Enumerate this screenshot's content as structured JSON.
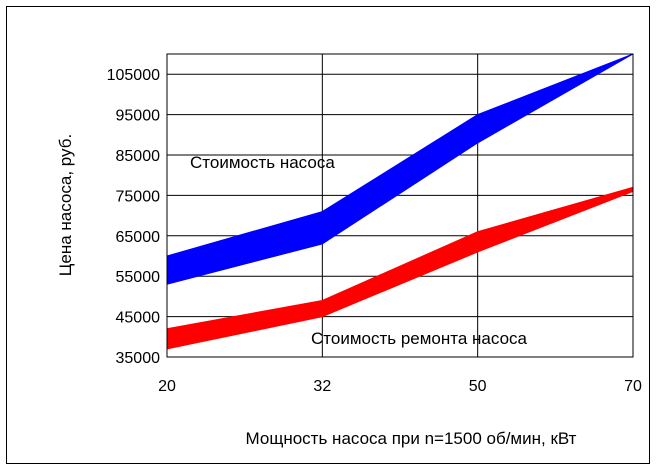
{
  "chart_data": {
    "type": "area",
    "title": "",
    "xlabel": "Мощность насоса при n=1500 об/мин, кВт",
    "ylabel": "Цена насоса, руб.",
    "x_categories": [
      "20",
      "32",
      "50",
      "70"
    ],
    "yticks": [
      35000,
      45000,
      55000,
      65000,
      75000,
      85000,
      95000,
      105000
    ],
    "ylim": [
      35000,
      110000
    ],
    "grid": true,
    "series": [
      {
        "name": "Стоимость насоса",
        "color": "#0000ff",
        "lower": [
          53000,
          63000,
          88000,
          110000
        ],
        "upper": [
          60000,
          71000,
          95000,
          110000
        ]
      },
      {
        "name": "Стоимость ремонта насоса",
        "color": "#ff0000",
        "lower": [
          37000,
          45000,
          61000,
          76000
        ],
        "upper": [
          42000,
          49000,
          66000,
          77000
        ]
      }
    ]
  }
}
